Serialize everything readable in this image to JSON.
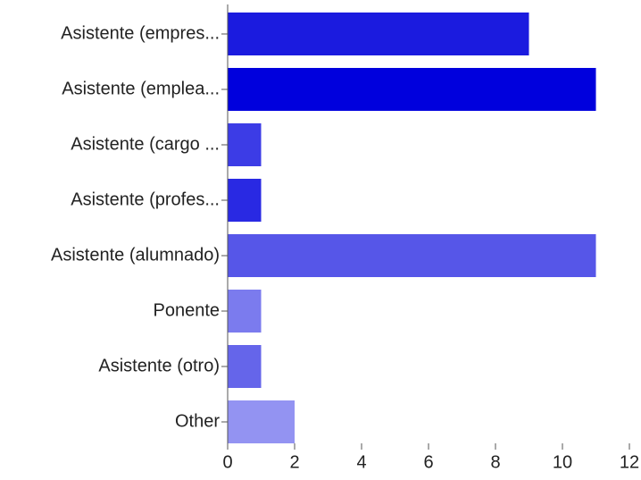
{
  "chart_data": {
    "type": "bar",
    "orientation": "horizontal",
    "categories": [
      "Asistente (empres...",
      "Asistente (emplea...",
      "Asistente (cargo ...",
      "Asistente (profes...",
      "Asistente (alumnado)",
      "Ponente",
      "Asistente (otro)",
      "Other"
    ],
    "values": [
      9,
      11,
      1,
      1,
      11,
      1,
      1,
      2
    ],
    "colors": [
      "#1b1bdf",
      "#0000dd",
      "#3c3ce6",
      "#2929e3",
      "#5656e8",
      "#7b7bee",
      "#6565ea",
      "#9393f2"
    ],
    "xlim": [
      0,
      12
    ],
    "xticks": [
      0,
      2,
      4,
      6,
      8,
      10,
      12
    ]
  }
}
